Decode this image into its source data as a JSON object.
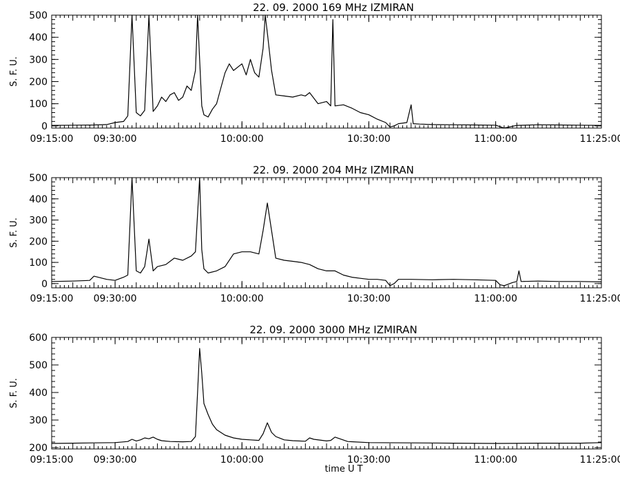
{
  "xlabel": "time   U T",
  "chart_data": [
    {
      "type": "line",
      "title": "22.  09.  2000    169  MHz    IZMIRAN",
      "ylabel": "S. F. U.",
      "xlabel": "",
      "xlim": [
        "09:15:00",
        "11:25:00"
      ],
      "x_ticks": [
        "09:15:00",
        "09:30:00",
        "10:00:00",
        "10:30:00",
        "11:00:00",
        "11:25:00"
      ],
      "ylim": [
        -10,
        500
      ],
      "y_ticks": [
        "0",
        "100",
        "200",
        "300",
        "400",
        "500"
      ],
      "series": [
        {
          "x": [
            "09:15:00",
            "09:20:00",
            "09:25:00",
            "09:28:00",
            "09:30:00",
            "09:32:00",
            "09:33:00",
            "09:34:00",
            "09:35:00",
            "09:36:00",
            "09:37:00",
            "09:38:00",
            "09:39:00",
            "09:40:00",
            "09:41:00",
            "09:42:00",
            "09:43:00",
            "09:44:00",
            "09:45:00",
            "09:46:00",
            "09:47:00",
            "09:48:00",
            "09:49:00",
            "09:49:30",
            "09:50:00",
            "09:50:30",
            "09:51:00",
            "09:52:00",
            "09:53:00",
            "09:54:00",
            "09:55:00",
            "09:56:00",
            "09:57:00",
            "09:58:00",
            "10:00:00",
            "10:01:00",
            "10:02:00",
            "10:03:00",
            "10:04:00",
            "10:05:00",
            "10:05:30",
            "10:06:00",
            "10:07:00",
            "10:08:00",
            "10:10:00",
            "10:12:00",
            "10:14:00",
            "10:15:00",
            "10:16:00",
            "10:18:00",
            "10:20:00",
            "10:21:00",
            "10:21:30",
            "10:22:00",
            "10:24:00",
            "10:26:00",
            "10:28:00",
            "10:30:00",
            "10:32:00",
            "10:34:00",
            "10:35:00",
            "10:36:00",
            "10:37:00",
            "10:39:00",
            "10:40:00",
            "10:40:30",
            "10:42:00",
            "10:45:00",
            "10:50:00",
            "10:55:00",
            "11:00:00",
            "11:02:00",
            "11:05:00",
            "11:10:00",
            "11:15:00",
            "11:20:00",
            "11:25:00"
          ],
          "values": [
            2,
            3,
            4,
            6,
            15,
            20,
            45,
            500,
            60,
            45,
            70,
            500,
            65,
            90,
            130,
            110,
            140,
            150,
            115,
            130,
            180,
            160,
            250,
            500,
            300,
            90,
            50,
            40,
            75,
            100,
            170,
            240,
            280,
            250,
            280,
            230,
            300,
            240,
            220,
            350,
            500,
            420,
            250,
            140,
            135,
            130,
            140,
            135,
            150,
            100,
            110,
            90,
            480,
            90,
            95,
            80,
            60,
            50,
            30,
            15,
            -5,
            0,
            10,
            15,
            95,
            10,
            8,
            6,
            5,
            4,
            3,
            -10,
            2,
            5,
            4,
            3,
            2
          ]
        }
      ]
    },
    {
      "type": "line",
      "title": "22.  09.  2000    204  MHz    IZMIRAN",
      "ylabel": "S. F. U.",
      "xlabel": "",
      "xlim": [
        "09:15:00",
        "11:25:00"
      ],
      "x_ticks": [
        "09:15:00",
        "09:30:00",
        "10:00:00",
        "10:30:00",
        "11:00:00",
        "11:25:00"
      ],
      "ylim": [
        -20,
        500
      ],
      "y_ticks": [
        "0",
        "100",
        "200",
        "300",
        "400",
        "500"
      ],
      "series": [
        {
          "x": [
            "09:15:00",
            "09:20:00",
            "09:24:00",
            "09:25:00",
            "09:28:00",
            "09:30:00",
            "09:32:00",
            "09:33:00",
            "09:34:00",
            "09:35:00",
            "09:36:00",
            "09:37:00",
            "09:38:00",
            "09:39:00",
            "09:40:00",
            "09:42:00",
            "09:44:00",
            "09:46:00",
            "09:48:00",
            "09:49:00",
            "09:50:00",
            "09:50:30",
            "09:51:00",
            "09:52:00",
            "09:54:00",
            "09:56:00",
            "09:58:00",
            "10:00:00",
            "10:02:00",
            "10:04:00",
            "10:05:00",
            "10:06:00",
            "10:07:00",
            "10:08:00",
            "10:10:00",
            "10:12:00",
            "10:14:00",
            "10:16:00",
            "10:18:00",
            "10:20:00",
            "10:22:00",
            "10:24:00",
            "10:26:00",
            "10:28:00",
            "10:30:00",
            "10:32:00",
            "10:34:00",
            "10:35:00",
            "10:36:00",
            "10:37:00",
            "10:40:00",
            "10:45:00",
            "10:50:00",
            "10:55:00",
            "11:00:00",
            "11:01:00",
            "11:02:00",
            "11:04:00",
            "11:05:00",
            "11:05:30",
            "11:06:00",
            "11:10:00",
            "11:15:00",
            "11:20:00",
            "11:25:00"
          ],
          "values": [
            10,
            12,
            15,
            35,
            20,
            15,
            30,
            40,
            500,
            60,
            50,
            80,
            210,
            60,
            80,
            90,
            120,
            110,
            130,
            150,
            500,
            160,
            70,
            50,
            60,
            80,
            140,
            150,
            150,
            140,
            250,
            380,
            250,
            120,
            110,
            105,
            100,
            90,
            70,
            60,
            60,
            40,
            30,
            25,
            20,
            20,
            15,
            -10,
            0,
            20,
            20,
            18,
            20,
            18,
            15,
            -5,
            -10,
            5,
            10,
            60,
            10,
            12,
            10,
            10,
            8
          ]
        }
      ]
    },
    {
      "type": "line",
      "title": "22.  09.  2000    3000  MHz    IZMIRAN",
      "ylabel": "S. F. U.",
      "xlabel": "time   U T",
      "xlim": [
        "09:15:00",
        "11:25:00"
      ],
      "x_ticks": [
        "09:15:00",
        "09:30:00",
        "10:00:00",
        "10:30:00",
        "11:00:00",
        "11:25:00"
      ],
      "ylim": [
        195,
        600
      ],
      "y_ticks": [
        "200",
        "300",
        "400",
        "500",
        "600"
      ],
      "series": [
        {
          "x": [
            "09:15:00",
            "09:20:00",
            "09:25:00",
            "09:30:00",
            "09:33:00",
            "09:34:00",
            "09:35:00",
            "09:36:00",
            "09:37:00",
            "09:38:00",
            "09:39:00",
            "09:40:00",
            "09:41:00",
            "09:43:00",
            "09:46:00",
            "09:48:00",
            "09:49:00",
            "09:49:30",
            "09:50:00",
            "09:50:30",
            "09:51:00",
            "09:52:00",
            "09:53:00",
            "09:54:00",
            "09:55:00",
            "09:56:00",
            "09:57:00",
            "09:58:00",
            "10:00:00",
            "10:02:00",
            "10:04:00",
            "10:05:00",
            "10:05:30",
            "10:06:00",
            "10:07:00",
            "10:08:00",
            "10:10:00",
            "10:12:00",
            "10:15:00",
            "10:16:00",
            "10:17:00",
            "10:20:00",
            "10:21:00",
            "10:22:00",
            "10:25:00",
            "10:30:00",
            "10:40:00",
            "10:50:00",
            "11:00:00",
            "11:10:00",
            "11:20:00",
            "11:25:00"
          ],
          "values": [
            215,
            216,
            217,
            218,
            222,
            230,
            224,
            228,
            235,
            232,
            238,
            230,
            225,
            222,
            221,
            222,
            240,
            400,
            560,
            470,
            360,
            320,
            285,
            265,
            255,
            245,
            240,
            235,
            230,
            228,
            226,
            250,
            270,
            290,
            255,
            240,
            228,
            225,
            223,
            235,
            230,
            224,
            226,
            238,
            222,
            218,
            217,
            216,
            215,
            216,
            216,
            218
          ]
        }
      ]
    }
  ]
}
